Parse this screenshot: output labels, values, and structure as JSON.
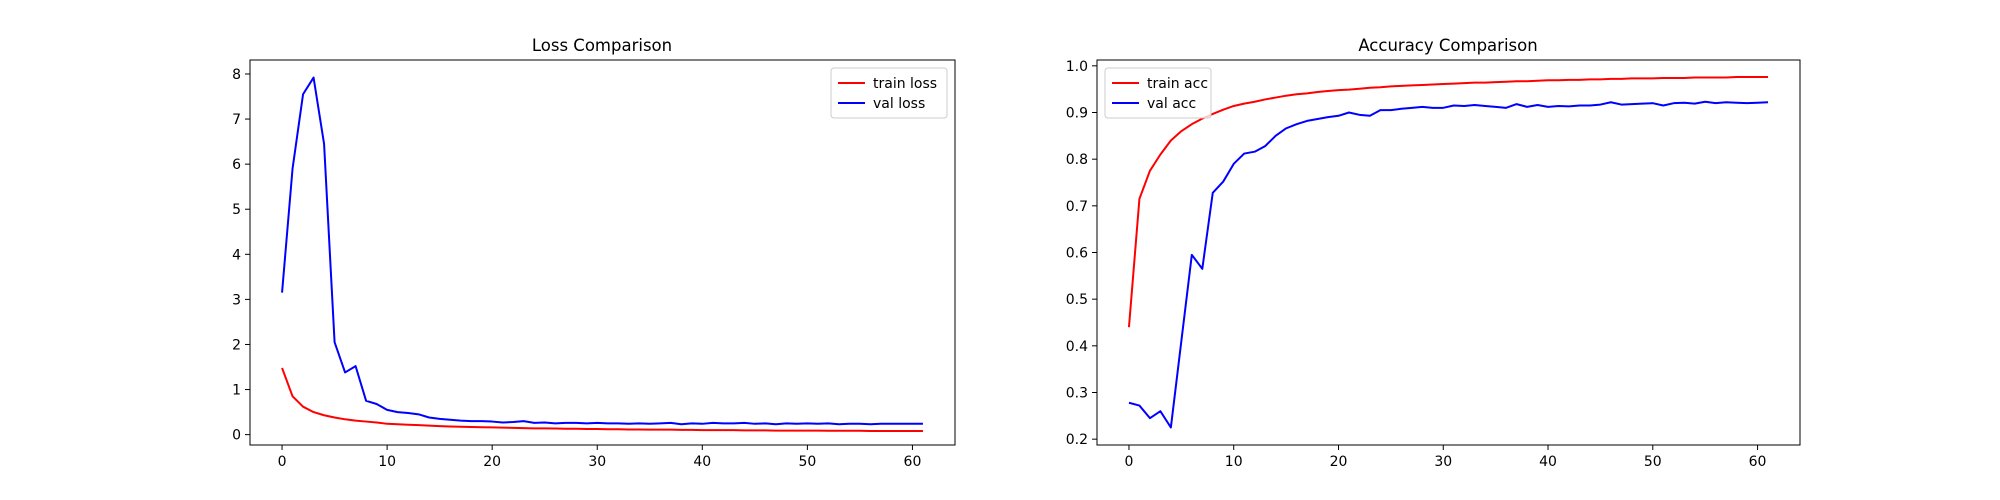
{
  "chart_data": [
    {
      "type": "line",
      "title": "Loss Comparison",
      "xlabel": "",
      "ylabel": "",
      "xlim": [
        -3.05,
        64.05
      ],
      "ylim": [
        -0.23,
        8.31
      ],
      "xticks": [
        0,
        10,
        20,
        30,
        40,
        50,
        60
      ],
      "yticks": [
        0,
        1,
        2,
        3,
        4,
        5,
        6,
        7,
        8
      ],
      "legend_position": "upper right",
      "grid": false,
      "series": [
        {
          "name": "train loss",
          "color": "#ff0000",
          "x": [
            0,
            1,
            2,
            3,
            4,
            5,
            6,
            7,
            8,
            9,
            10,
            11,
            12,
            13,
            14,
            15,
            16,
            17,
            18,
            19,
            20,
            21,
            22,
            23,
            24,
            25,
            26,
            27,
            28,
            29,
            30,
            31,
            32,
            33,
            34,
            35,
            36,
            37,
            38,
            39,
            40,
            41,
            42,
            43,
            44,
            45,
            46,
            47,
            48,
            49,
            50,
            51,
            52,
            53,
            54,
            55,
            56,
            57,
            58,
            59,
            60,
            61
          ],
          "values": [
            1.48,
            0.85,
            0.62,
            0.5,
            0.43,
            0.38,
            0.34,
            0.31,
            0.29,
            0.27,
            0.24,
            0.23,
            0.22,
            0.21,
            0.2,
            0.19,
            0.18,
            0.175,
            0.17,
            0.165,
            0.16,
            0.155,
            0.15,
            0.145,
            0.14,
            0.14,
            0.135,
            0.13,
            0.13,
            0.125,
            0.125,
            0.12,
            0.12,
            0.115,
            0.115,
            0.11,
            0.11,
            0.11,
            0.105,
            0.105,
            0.1,
            0.1,
            0.1,
            0.1,
            0.095,
            0.095,
            0.095,
            0.09,
            0.09,
            0.09,
            0.09,
            0.09,
            0.085,
            0.085,
            0.085,
            0.085,
            0.08,
            0.08,
            0.08,
            0.08,
            0.08,
            0.08
          ]
        },
        {
          "name": "val loss",
          "color": "#0000ff",
          "x": [
            0,
            1,
            2,
            3,
            4,
            5,
            6,
            7,
            8,
            9,
            10,
            11,
            12,
            13,
            14,
            15,
            16,
            17,
            18,
            19,
            20,
            21,
            22,
            23,
            24,
            25,
            26,
            27,
            28,
            29,
            30,
            31,
            32,
            33,
            34,
            35,
            36,
            37,
            38,
            39,
            40,
            41,
            42,
            43,
            44,
            45,
            46,
            47,
            48,
            49,
            50,
            51,
            52,
            53,
            54,
            55,
            56,
            57,
            58,
            59,
            60,
            61
          ],
          "values": [
            3.15,
            5.9,
            7.55,
            7.92,
            6.45,
            2.05,
            1.38,
            1.52,
            0.75,
            0.68,
            0.55,
            0.5,
            0.48,
            0.45,
            0.38,
            0.35,
            0.33,
            0.31,
            0.3,
            0.3,
            0.29,
            0.27,
            0.28,
            0.3,
            0.26,
            0.27,
            0.25,
            0.26,
            0.26,
            0.25,
            0.26,
            0.25,
            0.25,
            0.24,
            0.25,
            0.24,
            0.25,
            0.26,
            0.23,
            0.25,
            0.24,
            0.26,
            0.25,
            0.25,
            0.26,
            0.24,
            0.25,
            0.23,
            0.25,
            0.24,
            0.25,
            0.24,
            0.25,
            0.23,
            0.24,
            0.24,
            0.23,
            0.24,
            0.24,
            0.24,
            0.24,
            0.24
          ]
        }
      ]
    },
    {
      "type": "line",
      "title": "Accuracy Comparison",
      "xlabel": "",
      "ylabel": "",
      "xlim": [
        -3.05,
        64.05
      ],
      "ylim": [
        0.1875,
        1.0125
      ],
      "xticks": [
        0,
        10,
        20,
        30,
        40,
        50,
        60
      ],
      "yticks": [
        0.2,
        0.3,
        0.4,
        0.5,
        0.6,
        0.7,
        0.8,
        0.9,
        1.0
      ],
      "ytick_labels": [
        "0.2",
        "0.3",
        "0.4",
        "0.5",
        "0.6",
        "0.7",
        "0.8",
        "0.9",
        "1.0"
      ],
      "legend_position": "upper left",
      "grid": false,
      "series": [
        {
          "name": "train acc",
          "color": "#ff0000",
          "x": [
            0,
            1,
            2,
            3,
            4,
            5,
            6,
            7,
            8,
            9,
            10,
            11,
            12,
            13,
            14,
            15,
            16,
            17,
            18,
            19,
            20,
            21,
            22,
            23,
            24,
            25,
            26,
            27,
            28,
            29,
            30,
            31,
            32,
            33,
            34,
            35,
            36,
            37,
            38,
            39,
            40,
            41,
            42,
            43,
            44,
            45,
            46,
            47,
            48,
            49,
            50,
            51,
            52,
            53,
            54,
            55,
            56,
            57,
            58,
            59,
            60,
            61
          ],
          "values": [
            0.44,
            0.715,
            0.775,
            0.81,
            0.84,
            0.86,
            0.875,
            0.887,
            0.897,
            0.906,
            0.914,
            0.919,
            0.923,
            0.928,
            0.932,
            0.936,
            0.939,
            0.941,
            0.944,
            0.946,
            0.948,
            0.949,
            0.951,
            0.953,
            0.954,
            0.956,
            0.957,
            0.958,
            0.959,
            0.96,
            0.961,
            0.962,
            0.963,
            0.964,
            0.964,
            0.965,
            0.966,
            0.967,
            0.967,
            0.968,
            0.969,
            0.969,
            0.97,
            0.97,
            0.971,
            0.971,
            0.972,
            0.972,
            0.973,
            0.973,
            0.973,
            0.974,
            0.974,
            0.974,
            0.975,
            0.975,
            0.975,
            0.975,
            0.976,
            0.976,
            0.976,
            0.976
          ]
        },
        {
          "name": "val acc",
          "color": "#0000ff",
          "x": [
            0,
            1,
            2,
            3,
            4,
            5,
            6,
            7,
            8,
            9,
            10,
            11,
            12,
            13,
            14,
            15,
            16,
            17,
            18,
            19,
            20,
            21,
            22,
            23,
            24,
            25,
            26,
            27,
            28,
            29,
            30,
            31,
            32,
            33,
            34,
            35,
            36,
            37,
            38,
            39,
            40,
            41,
            42,
            43,
            44,
            45,
            46,
            47,
            48,
            49,
            50,
            51,
            52,
            53,
            54,
            55,
            56,
            57,
            58,
            59,
            60,
            61
          ],
          "values": [
            0.278,
            0.272,
            0.245,
            0.26,
            0.225,
            0.41,
            0.595,
            0.565,
            0.728,
            0.752,
            0.79,
            0.812,
            0.816,
            0.828,
            0.85,
            0.866,
            0.875,
            0.882,
            0.886,
            0.89,
            0.893,
            0.9,
            0.895,
            0.893,
            0.905,
            0.905,
            0.908,
            0.91,
            0.912,
            0.91,
            0.91,
            0.915,
            0.914,
            0.916,
            0.914,
            0.912,
            0.91,
            0.918,
            0.912,
            0.916,
            0.912,
            0.914,
            0.913,
            0.915,
            0.915,
            0.917,
            0.922,
            0.917,
            0.918,
            0.919,
            0.92,
            0.915,
            0.92,
            0.921,
            0.919,
            0.923,
            0.92,
            0.922,
            0.921,
            0.92,
            0.921,
            0.922
          ]
        }
      ]
    }
  ]
}
